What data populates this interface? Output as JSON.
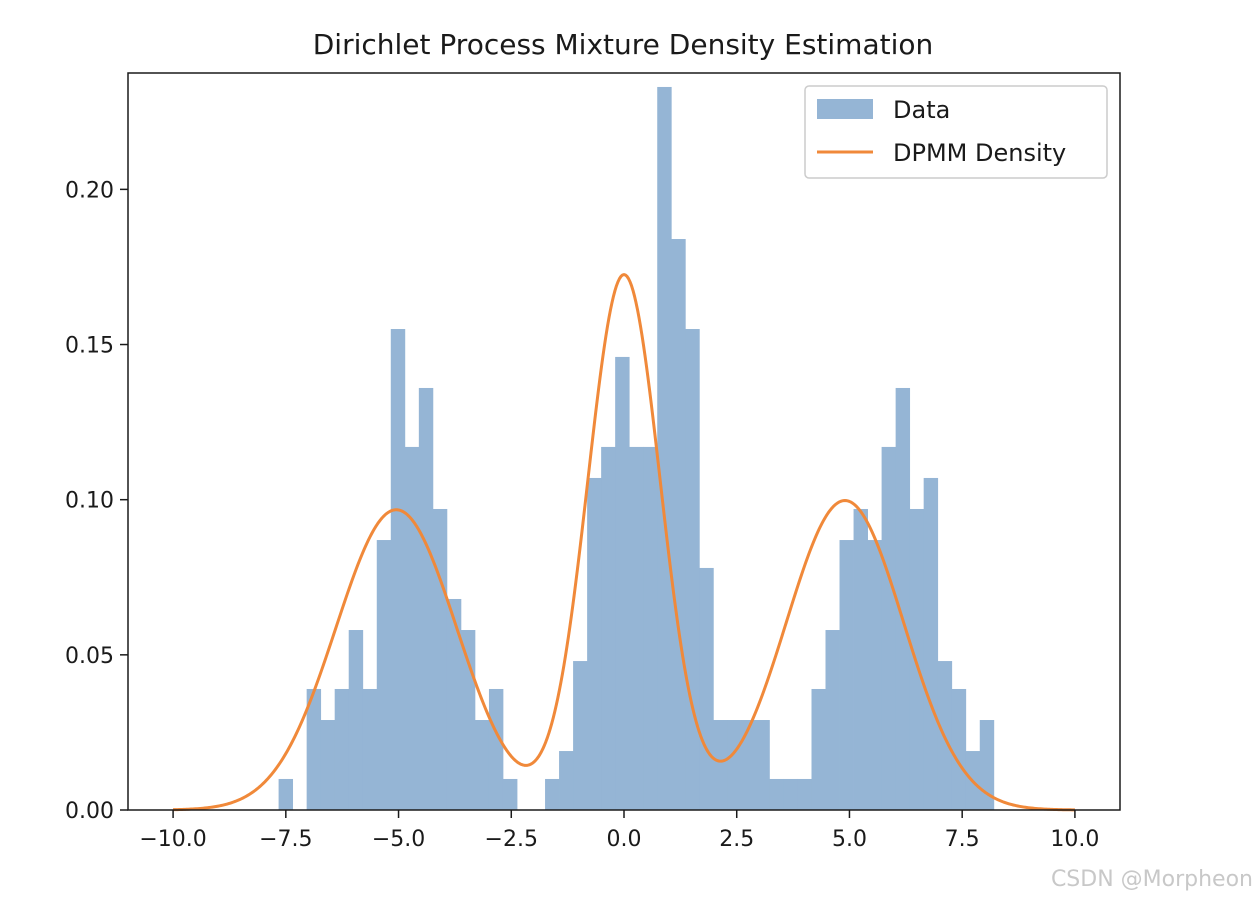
{
  "chart_data": {
    "type": "bar",
    "title": "Dirichlet Process Mixture Density Estimation",
    "xlabel": "",
    "ylabel": "",
    "xlim": [
      -11.0,
      11.0
    ],
    "ylim": [
      0.0,
      0.2375
    ],
    "xticks": [
      -10.0,
      -7.5,
      -5.0,
      -2.5,
      0.0,
      2.5,
      5.0,
      7.5,
      10.0
    ],
    "xtick_labels": [
      "−10.0",
      "−7.5",
      "−5.0",
      "−2.5",
      "0.0",
      "2.5",
      "5.0",
      "7.5",
      "10.0"
    ],
    "yticks": [
      0.0,
      0.05,
      0.1,
      0.15,
      0.2
    ],
    "ytick_labels": [
      "0.00",
      "0.05",
      "0.10",
      "0.15",
      "0.20"
    ],
    "grid": false,
    "legend_position": "top-right",
    "histogram": {
      "name": "Data",
      "color": "#95b5d5",
      "bin_start": -7.66,
      "bin_width": 0.311,
      "counts": [
        0.01,
        0.0,
        0.039,
        0.029,
        0.039,
        0.058,
        0.039,
        0.087,
        0.155,
        0.117,
        0.136,
        0.097,
        0.068,
        0.058,
        0.029,
        0.039,
        0.01,
        0.0,
        0.0,
        0.01,
        0.019,
        0.048,
        0.107,
        0.117,
        0.146,
        0.117,
        0.117,
        0.233,
        0.184,
        0.155,
        0.078,
        0.029,
        0.029,
        0.029,
        0.029,
        0.01,
        0.01,
        0.01,
        0.039,
        0.058,
        0.087,
        0.097,
        0.087,
        0.117,
        0.136,
        0.097,
        0.107,
        0.048,
        0.039,
        0.019,
        0.029
      ]
    },
    "series": [
      {
        "name": "DPMM Density",
        "type": "line",
        "color": "#f0893a",
        "components": [
          {
            "weight": 0.325,
            "mean": -5.05,
            "std": 1.34
          },
          {
            "weight": 0.35,
            "mean": 0.0,
            "std": 0.81
          },
          {
            "weight": 0.325,
            "mean": 4.9,
            "std": 1.3
          }
        ],
        "x_range": [
          -10.0,
          10.0
        ]
      }
    ],
    "legend": [
      {
        "label": "Data",
        "kind": "patch",
        "color": "#95b5d5"
      },
      {
        "label": "DPMM Density",
        "kind": "line",
        "color": "#f0893a"
      }
    ]
  },
  "watermark": "CSDN @Morpheon"
}
